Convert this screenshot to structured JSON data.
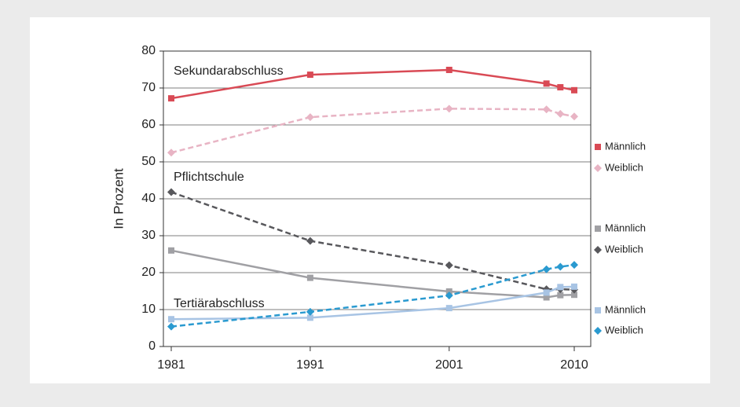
{
  "chart_data": {
    "type": "line",
    "y_label": "In Prozent",
    "x": [
      1981,
      1991,
      2001,
      2008,
      2009,
      2010
    ],
    "xlim": [
      1981,
      2010
    ],
    "xticks": [
      1981,
      1991,
      2001,
      2010
    ],
    "ylim": [
      0,
      80
    ],
    "yticks": [
      0,
      10,
      20,
      30,
      40,
      50,
      60,
      70,
      80
    ],
    "grid": true,
    "annotations": [
      {
        "text": "Sekundarabschluss",
        "color": "#b03040"
      },
      {
        "text": "Pflichtschule",
        "color": "#222222"
      },
      {
        "text": "Tertiärabschluss",
        "color": "#2a8ac0"
      }
    ],
    "series": [
      {
        "name": "Männlich",
        "color": "#d94a55",
        "dash": false,
        "marker": "square",
        "values": [
          67.2,
          73.6,
          74.9,
          71.2,
          70.2,
          69.4
        ]
      },
      {
        "name": "Weiblich",
        "color": "#e8b4c4",
        "dash": true,
        "marker": "diamond",
        "values": [
          52.5,
          62.1,
          64.4,
          64.2,
          63.0,
          62.3
        ]
      },
      {
        "name": "Männlich",
        "color": "#a0a0a4",
        "dash": false,
        "marker": "square",
        "values": [
          26.0,
          18.6,
          14.9,
          13.3,
          13.9,
          14.0
        ]
      },
      {
        "name": "Weiblich",
        "color": "#58585c",
        "dash": true,
        "marker": "diamond",
        "values": [
          41.8,
          28.6,
          22.0,
          15.5,
          15.5,
          15.4
        ]
      },
      {
        "name": "Männlich",
        "color": "#a8c4e4",
        "dash": false,
        "marker": "square",
        "values": [
          7.4,
          7.8,
          10.4,
          14.6,
          16.1,
          16.2
        ]
      },
      {
        "name": "Weiblich",
        "color": "#2a9ad0",
        "dash": true,
        "marker": "diamond",
        "values": [
          5.4,
          9.4,
          13.8,
          20.9,
          21.6,
          22.1
        ]
      }
    ]
  }
}
